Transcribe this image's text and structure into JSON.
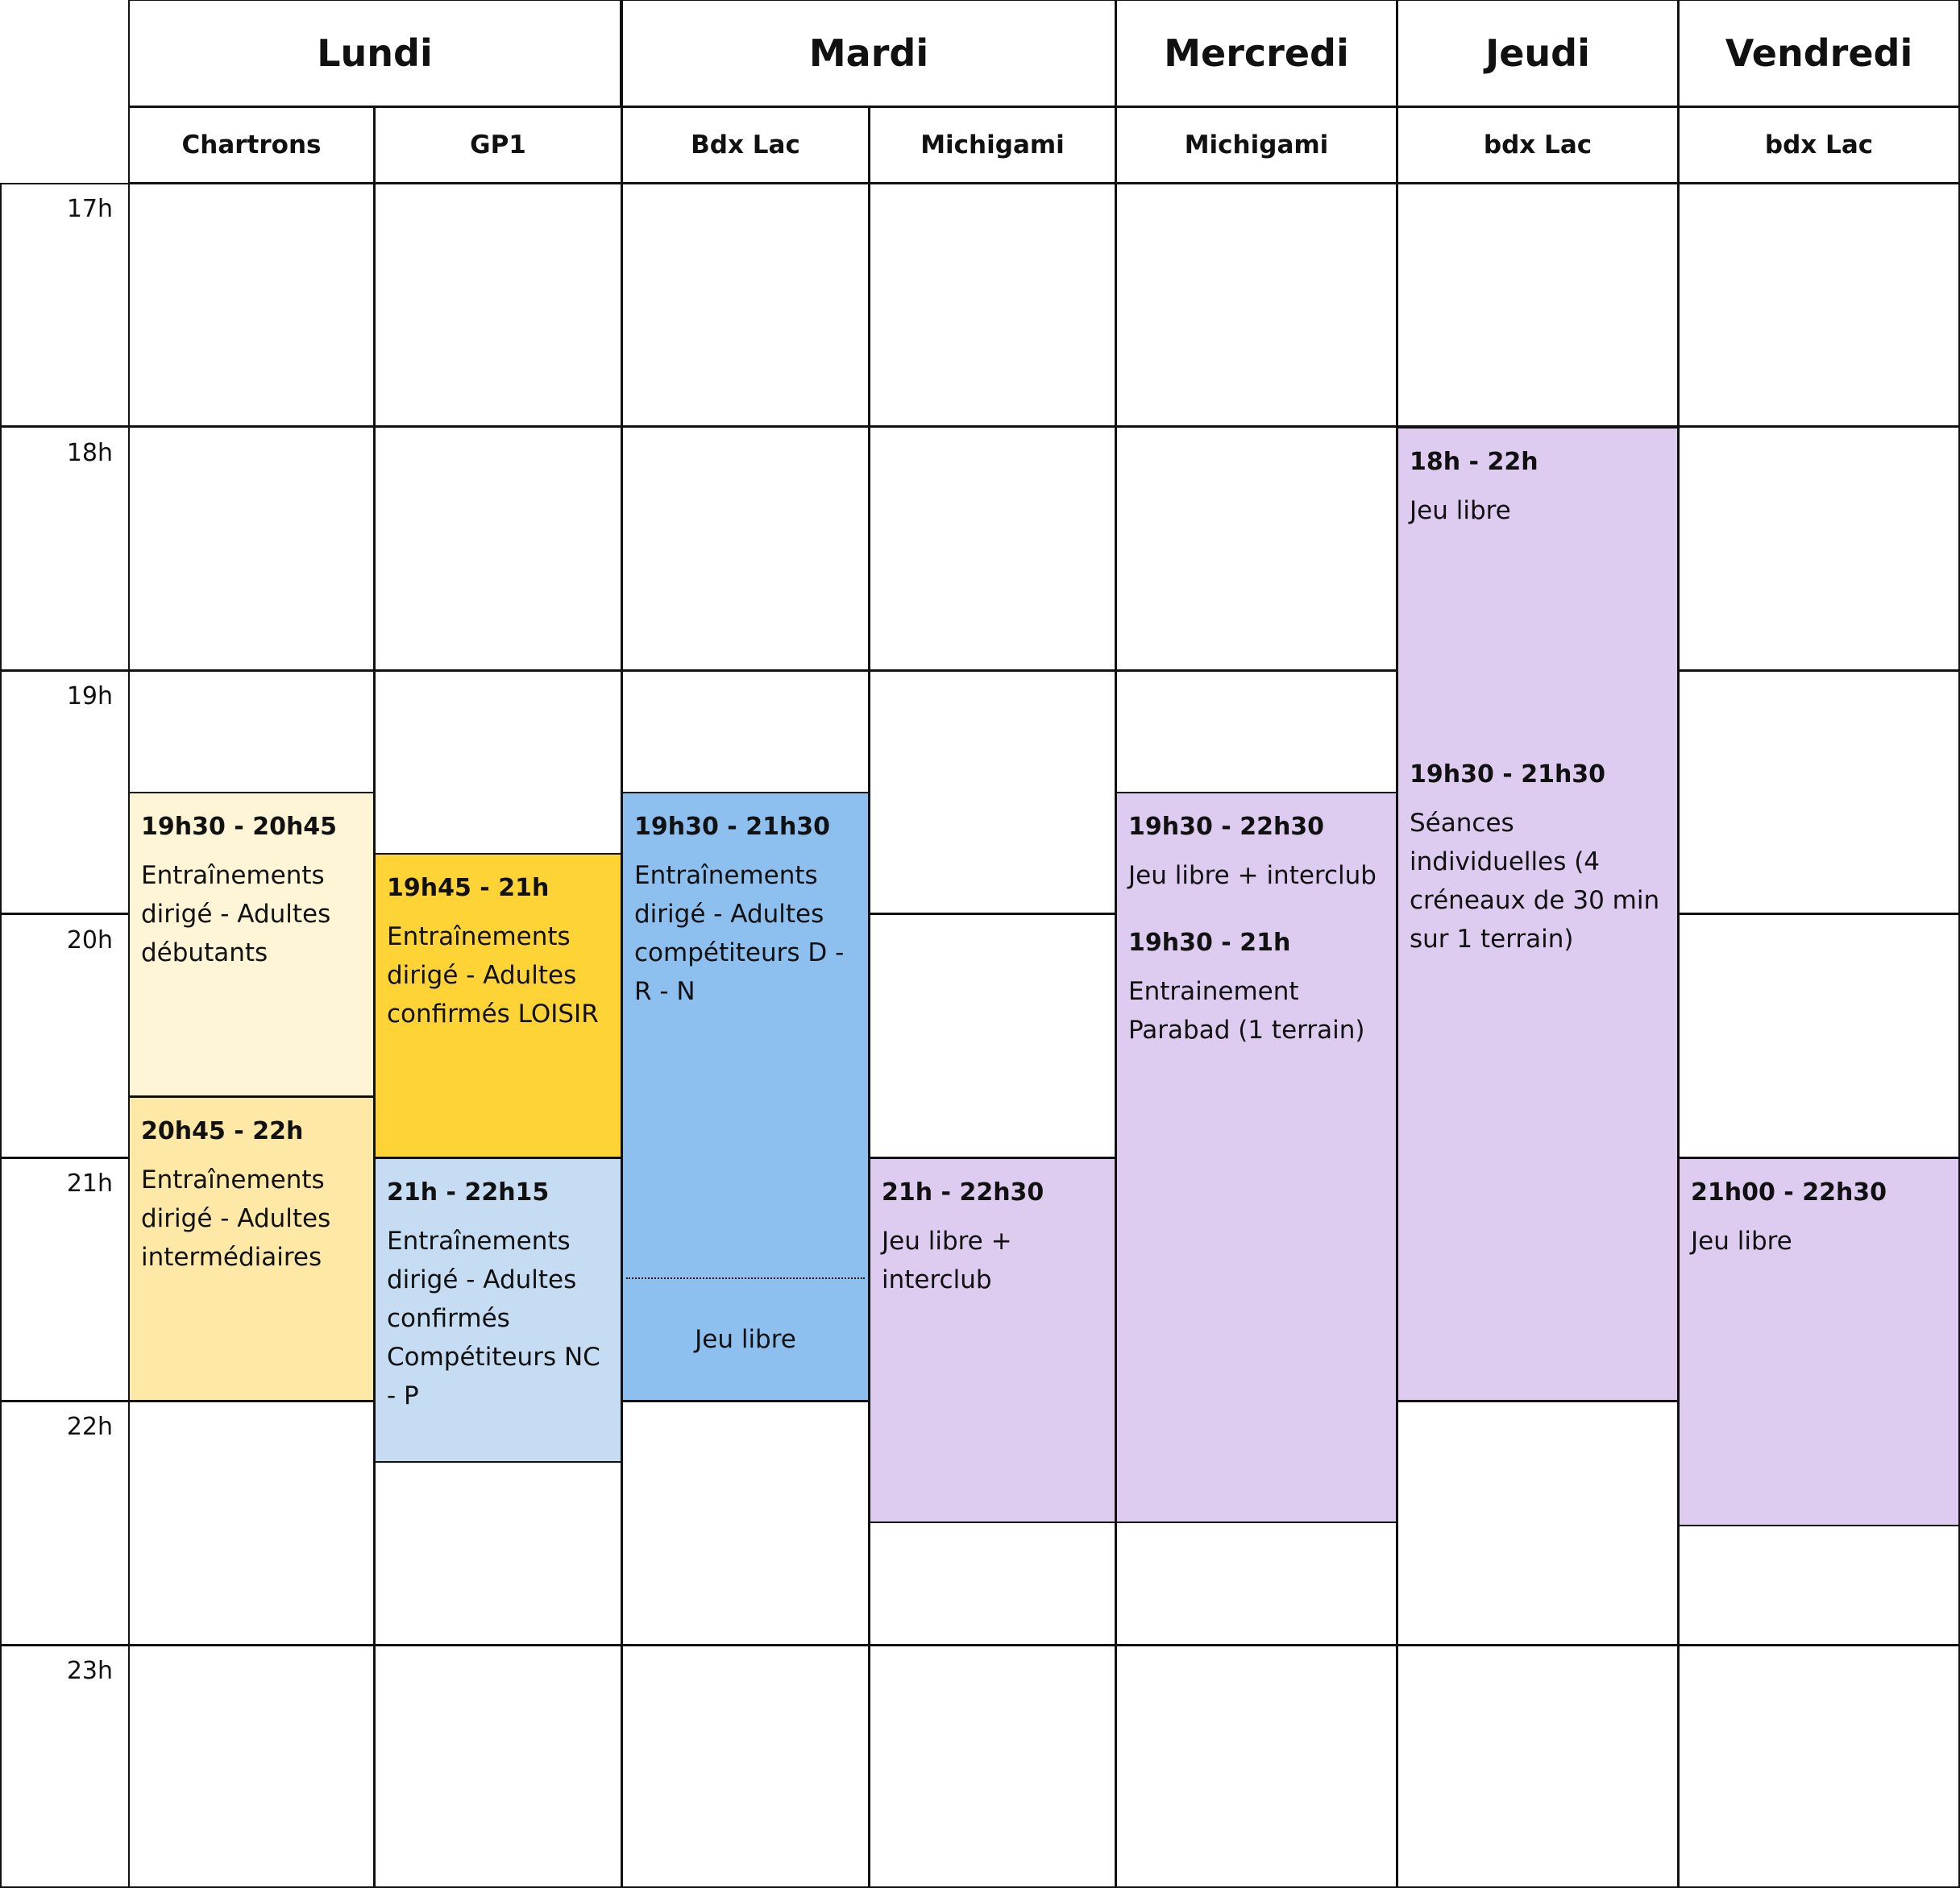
{
  "days": [
    {
      "name": "Lundi",
      "sites": [
        "Chartrons",
        "GP1"
      ]
    },
    {
      "name": "Mardi",
      "sites": [
        "Bdx Lac",
        "Michigami"
      ]
    },
    {
      "name": "Mercredi",
      "sites": [
        "Michigami"
      ]
    },
    {
      "name": "Jeudi",
      "sites": [
        "bdx Lac"
      ]
    },
    {
      "name": "Vendredi",
      "sites": [
        "bdx Lac"
      ]
    }
  ],
  "hours": [
    "17h",
    "18h",
    "19h",
    "20h",
    "21h",
    "22h",
    "23h"
  ],
  "colors": {
    "debutants": "#fef4d6",
    "intermediaires": "#fde8a6",
    "loisir": "#fed335",
    "competiteurs_nc_p": "#c6dcf3",
    "competiteurs_drn": "#8dc0ef",
    "jeu_libre": "#decbf0"
  },
  "events": {
    "lundi_chartrons_1": {
      "time": "19h30 - 20h45",
      "desc": "Entraînements dirigé - Adultes débutants"
    },
    "lundi_chartrons_2": {
      "time": "20h45 - 22h",
      "desc": "Entraînements dirigé - Adultes intermédiaires"
    },
    "lundi_gp1_1": {
      "time": "19h45 - 21h",
      "desc": "Entraînements dirigé - Adultes confirmés LOISIR"
    },
    "lundi_gp1_2": {
      "time": "21h - 22h15",
      "desc": "Entraînements dirigé - Adultes confirmés Compétiteurs NC - P"
    },
    "mardi_bdxlac": {
      "time": "19h30 - 21h30",
      "desc": "Entraînements dirigé - Adultes compétiteurs D - R - N",
      "after": "Jeu libre"
    },
    "mardi_michigami": {
      "time": "21h - 22h30",
      "desc": "Jeu libre + interclub"
    },
    "mercredi_1": {
      "time": "19h30 - 22h30",
      "desc": "Jeu libre + interclub"
    },
    "mercredi_2": {
      "time": "19h30 - 21h",
      "desc": "Entrainement Parabad (1 terrain)"
    },
    "jeudi_1": {
      "time": "18h - 22h",
      "desc": "Jeu libre"
    },
    "jeudi_2": {
      "time": "19h30 - 21h30",
      "desc": "Séances individuelles (4 créneaux de 30 min sur 1 terrain)"
    },
    "vendredi": {
      "time": "21h00 - 22h30",
      "desc": "Jeu libre"
    }
  }
}
